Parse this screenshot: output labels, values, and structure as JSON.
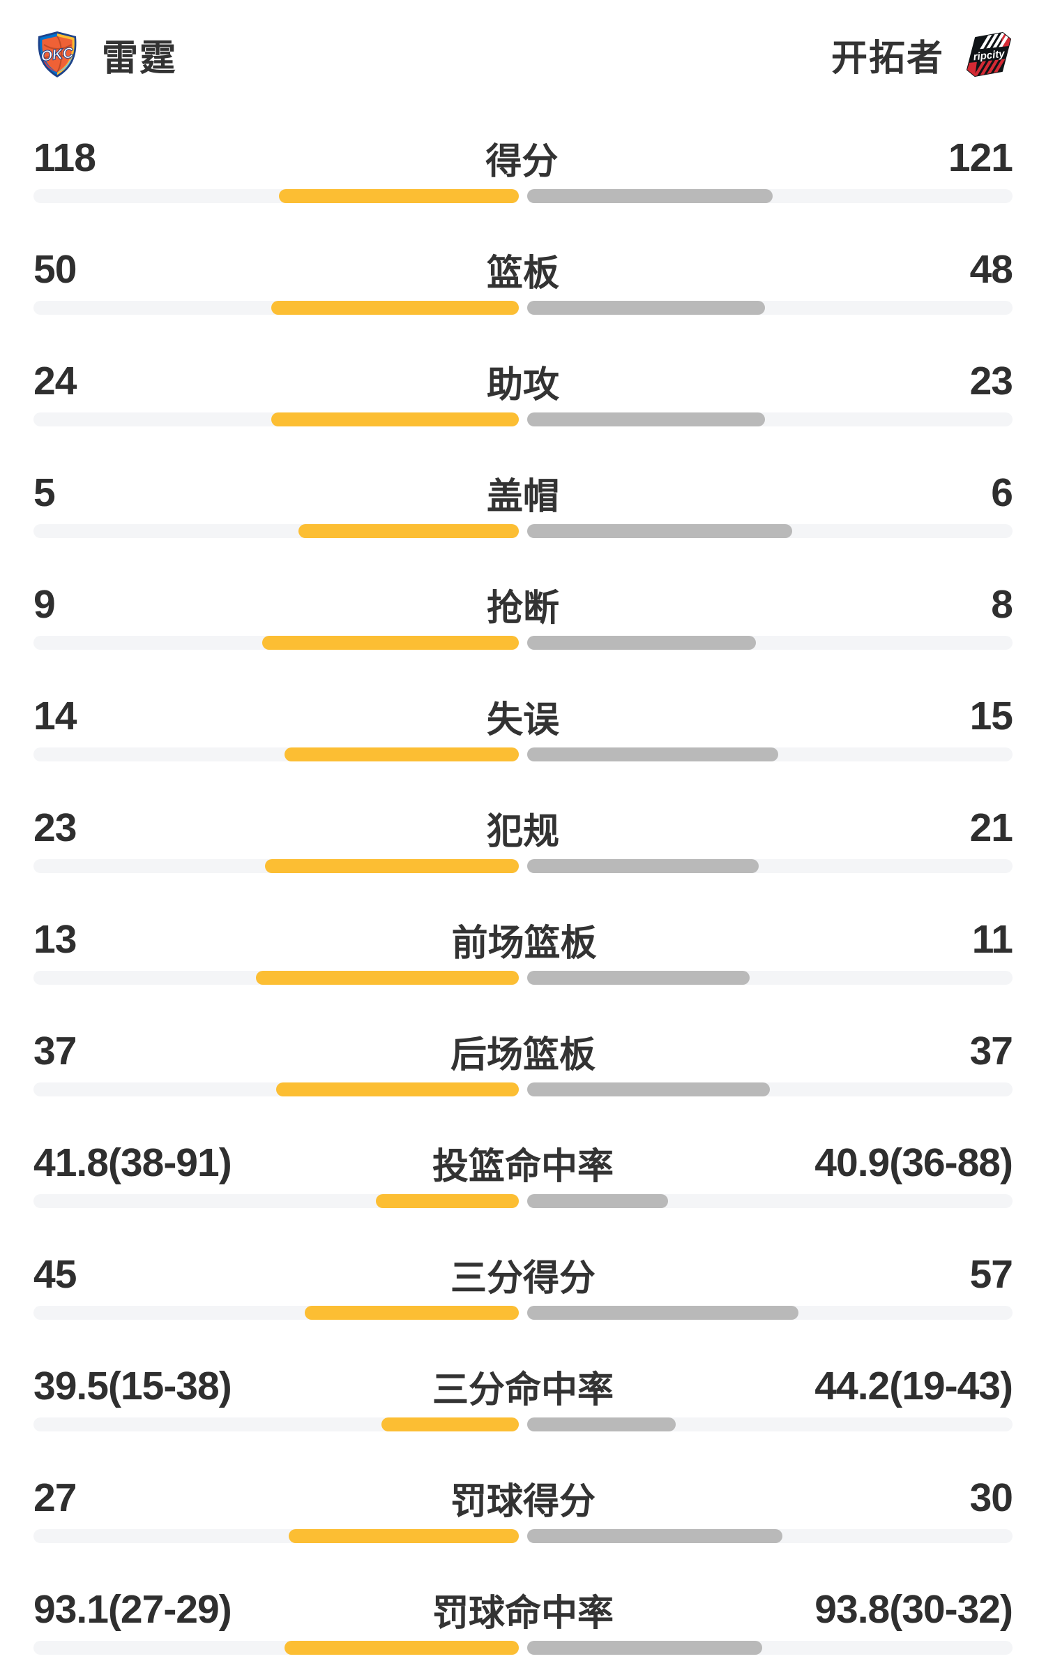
{
  "header": {
    "home": {
      "name": "雷霆",
      "logo": "okc-thunder-logo"
    },
    "away": {
      "name": "开拓者",
      "logo": "blazers-ripcity-logo"
    }
  },
  "colors": {
    "home_bar": "#fcbe33",
    "away_bar": "#b9b9b9",
    "track": "#f4f5f7",
    "text": "#333333",
    "okc_orange": "#ef6136",
    "okc_navy": "#1d428a",
    "okc_blue": "#0072ce",
    "okc_yellow": "#fdbb30",
    "blazers_red": "#d42a34",
    "blazers_black": "#101417"
  },
  "chart_data": {
    "type": "bar",
    "orientation": "horizontal-paired",
    "legend": [
      "雷霆",
      "开拓者"
    ],
    "legend_position": "top",
    "grid": false,
    "bar_scale_note": "count rows: width = value/(home+away); percent rows: width = value/(value+100)",
    "rows": [
      {
        "label": "得分",
        "kind": "count",
        "home": 118,
        "away": 121
      },
      {
        "label": "篮板",
        "kind": "count",
        "home": 50,
        "away": 48
      },
      {
        "label": "助攻",
        "kind": "count",
        "home": 24,
        "away": 23
      },
      {
        "label": "盖帽",
        "kind": "count",
        "home": 5,
        "away": 6
      },
      {
        "label": "抢断",
        "kind": "count",
        "home": 9,
        "away": 8
      },
      {
        "label": "失误",
        "kind": "count",
        "home": 14,
        "away": 15
      },
      {
        "label": "犯规",
        "kind": "count",
        "home": 23,
        "away": 21
      },
      {
        "label": "前场篮板",
        "kind": "count",
        "home": 13,
        "away": 11
      },
      {
        "label": "后场篮板",
        "kind": "count",
        "home": 37,
        "away": 37
      },
      {
        "label": "投篮命中率",
        "kind": "percent",
        "home": 41.8,
        "away": 40.9,
        "home_detail": "38-91",
        "away_detail": "36-88"
      },
      {
        "label": "三分得分",
        "kind": "count",
        "home": 45,
        "away": 57
      },
      {
        "label": "三分命中率",
        "kind": "percent",
        "home": 39.5,
        "away": 44.2,
        "home_detail": "15-38",
        "away_detail": "19-43"
      },
      {
        "label": "罚球得分",
        "kind": "count",
        "home": 27,
        "away": 30
      },
      {
        "label": "罚球命中率",
        "kind": "percent",
        "home": 93.1,
        "away": 93.8,
        "home_detail": "27-29",
        "away_detail": "30-32"
      }
    ]
  }
}
